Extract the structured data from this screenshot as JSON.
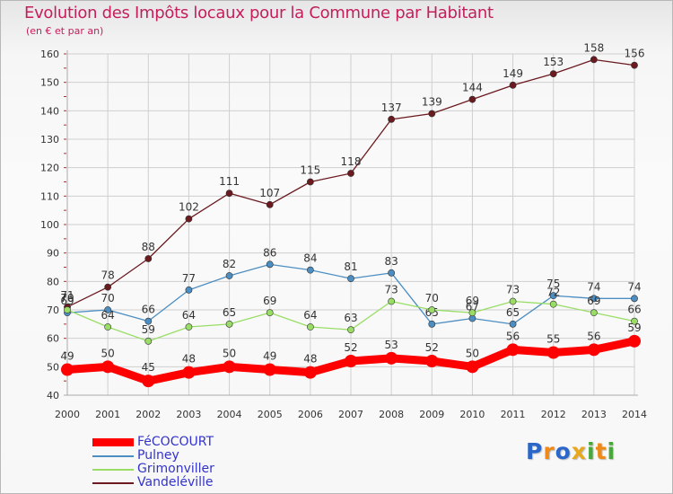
{
  "chart_data": {
    "type": "line",
    "title": "Evolution des Impôts locaux pour la Commune par Habitant",
    "subtitle": "(en € et par an)",
    "x": [
      "2000",
      "2001",
      "2002",
      "2003",
      "2004",
      "2005",
      "2006",
      "2007",
      "2008",
      "2009",
      "2010",
      "2011",
      "2012",
      "2013",
      "2014"
    ],
    "ylim": [
      40,
      160
    ],
    "yticks": [
      40,
      50,
      60,
      70,
      80,
      90,
      100,
      110,
      120,
      130,
      140,
      150,
      160
    ],
    "grid": true,
    "legend_position": "bottom-left",
    "series": [
      {
        "name": "Vandeléville",
        "color": "#6b1a1f",
        "values": [
          71,
          78,
          88,
          102,
          111,
          107,
          115,
          118,
          137,
          139,
          144,
          149,
          153,
          158,
          156
        ]
      },
      {
        "name": "Pulney",
        "color": "#4d8ec2",
        "values": [
          69,
          70,
          66,
          77,
          82,
          86,
          84,
          81,
          83,
          65,
          67,
          65,
          75,
          74,
          74
        ]
      },
      {
        "name": "Grimonviller",
        "color": "#99dd66",
        "values": [
          70,
          64,
          59,
          64,
          65,
          69,
          64,
          63,
          73,
          70,
          69,
          73,
          72,
          69,
          66
        ]
      },
      {
        "name": "FéCOCOURT",
        "color": "#ff0000",
        "values": [
          49,
          50,
          45,
          48,
          50,
          49,
          48,
          52,
          53,
          52,
          50,
          56,
          55,
          56,
          59
        ]
      }
    ]
  },
  "legend": [
    {
      "label": "FéCOCOURT",
      "color": "#ff0000"
    },
    {
      "label": "Pulney",
      "color": "#4d8ec2"
    },
    {
      "label": "Grimonviller",
      "color": "#99dd66"
    },
    {
      "label": "Vandeléville",
      "color": "#6b1a1f"
    }
  ],
  "colors": {
    "title": "#c41e5b",
    "legend_text": "#3333cc",
    "axis_text": "#333333"
  },
  "logo": {
    "letters": [
      "P",
      "r",
      "o",
      "x",
      "i",
      "t",
      "i"
    ],
    "colors": [
      "#2a67c9",
      "#f08a16",
      "#2a67c9",
      "#e8a81d",
      "#49a83a",
      "#f08a16",
      "#49a83a"
    ]
  }
}
